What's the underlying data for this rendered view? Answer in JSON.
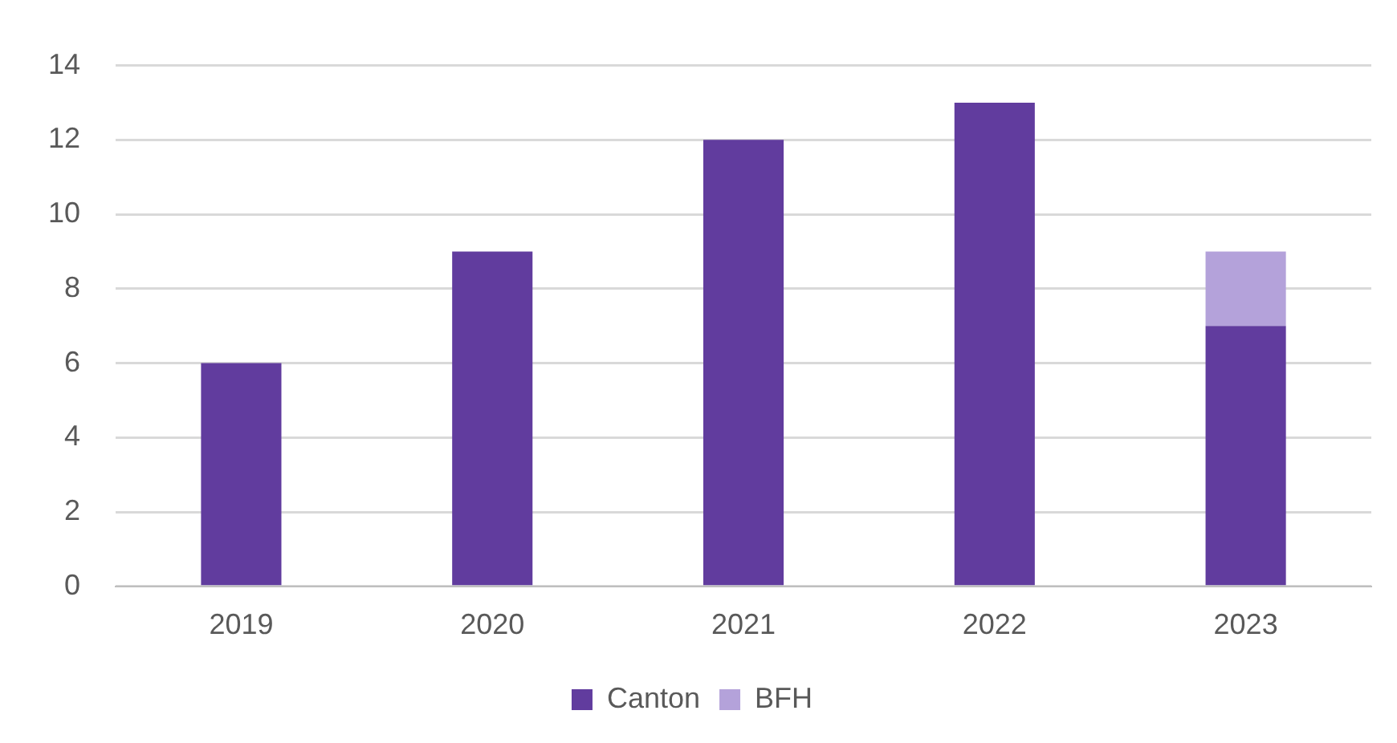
{
  "chart_data": {
    "type": "bar",
    "categories": [
      "2019",
      "2020",
      "2021",
      "2022",
      "2023"
    ],
    "stacked": true,
    "series": [
      {
        "name": "Canton",
        "color": "#613c9e",
        "values": [
          6,
          9,
          12,
          13,
          7
        ]
      },
      {
        "name": "BFH",
        "color": "#b4a2da",
        "values": [
          null,
          null,
          null,
          null,
          2
        ]
      }
    ],
    "ylim": [
      0,
      14
    ],
    "yticks": [
      0,
      2,
      4,
      6,
      8,
      10,
      12,
      14
    ],
    "grid": "y",
    "legend": "bottom"
  }
}
